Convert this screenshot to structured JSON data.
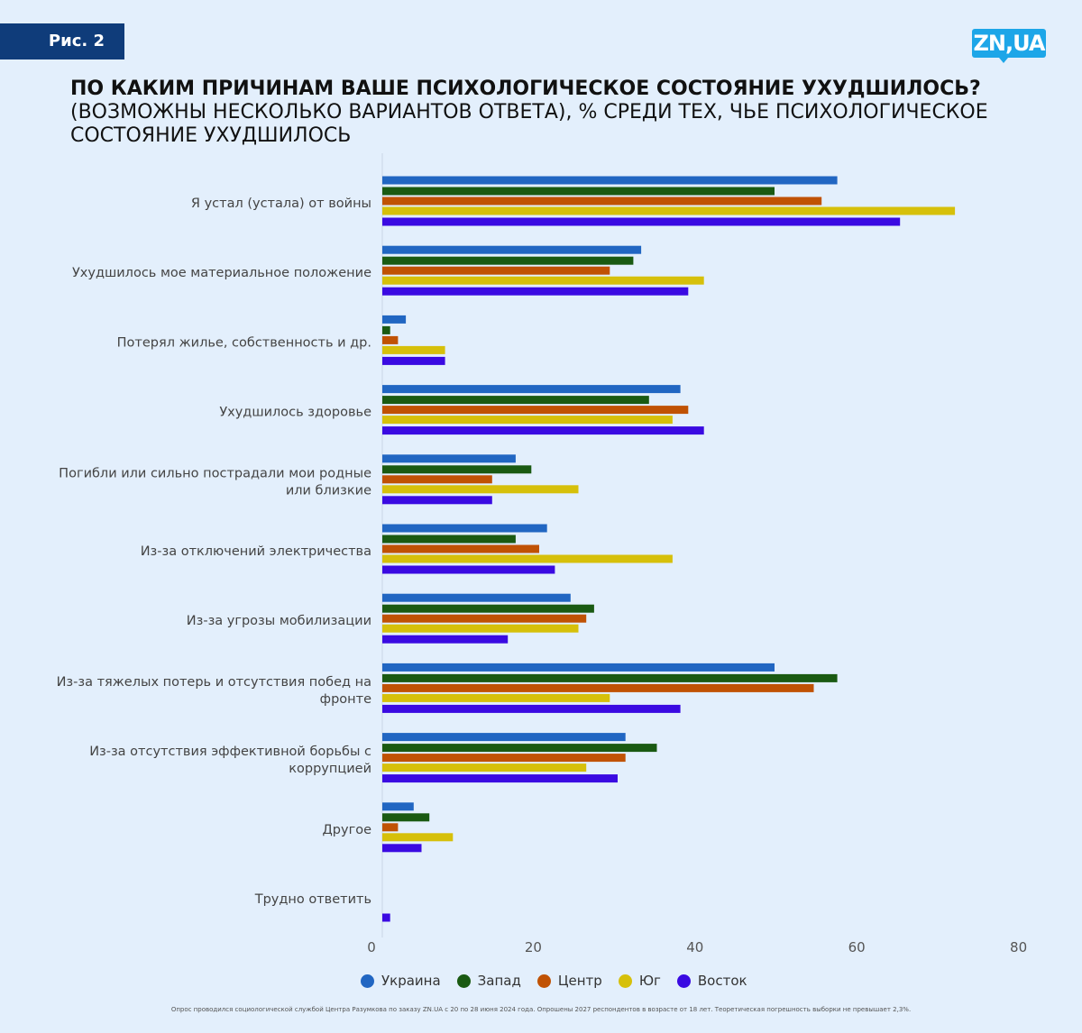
{
  "badge": "Рис. 2",
  "logo": "ZN,UA",
  "title": {
    "line1": "ПО КАКИМ ПРИЧИНАМ ВАШЕ ПСИХОЛОГИЧЕСКОЕ СОСТОЯНИЕ УХУДШИЛОСЬ?",
    "line2": "(ВОЗМОЖНЫ НЕСКОЛЬКО ВАРИАНТОВ ОТВЕТА), % СРЕДИ ТЕХ, ЧЬЕ ПСИХОЛОГИЧЕСКОЕ СОСТОЯНИЕ УХУДШИЛОСЬ"
  },
  "footnote": "Опрос проводился социологической службой Центра Разумкова по заказу ZN.UA с 20 по 28 июня 2024 года. Опрошены 2027 респондентов в возрасте от 18 лет. Теоретическая погрешность выборки не превышает 2,3%.",
  "chart_data": {
    "type": "bar",
    "orientation": "horizontal",
    "xlim": [
      0,
      80
    ],
    "xticks": [
      0,
      20,
      40,
      60,
      80
    ],
    "grid": false,
    "legend_position": "bottom",
    "categories": [
      [
        "Я устал (устала) от войны"
      ],
      [
        "Ухудшилось мое материальное положение"
      ],
      [
        "Потерял жилье, собственность и др."
      ],
      [
        "Ухудшилось здоровье"
      ],
      [
        "Погибли или сильно пострадали мои родные",
        "или близкие"
      ],
      [
        "Из-за отключений электричества"
      ],
      [
        "Из-за угрозы мобилизации"
      ],
      [
        "Из-за тяжелых потерь и отсутствия побед на",
        "фронте"
      ],
      [
        "Из-за отсутствия эффективной борьбы с",
        "коррупцией"
      ],
      [
        "Другое"
      ],
      [
        "Трудно ответить"
      ]
    ],
    "series": [
      {
        "name": "Украина",
        "color": "#2166c2",
        "values": [
          58,
          33,
          3,
          38,
          17,
          21,
          24,
          50,
          31,
          4,
          0
        ]
      },
      {
        "name": "Запад",
        "color": "#1a5a12",
        "values": [
          50,
          32,
          1,
          34,
          19,
          17,
          27,
          58,
          35,
          6,
          0
        ]
      },
      {
        "name": "Центр",
        "color": "#c05204",
        "values": [
          56,
          29,
          2,
          39,
          14,
          20,
          26,
          55,
          31,
          2,
          0
        ]
      },
      {
        "name": "Юг",
        "color": "#d6c00a",
        "values": [
          73,
          41,
          8,
          37,
          25,
          37,
          25,
          29,
          26,
          9,
          0
        ]
      },
      {
        "name": "Восток",
        "color": "#3a0ae2",
        "values": [
          66,
          39,
          8,
          41,
          14,
          22,
          16,
          38,
          30,
          5,
          1
        ]
      }
    ]
  }
}
